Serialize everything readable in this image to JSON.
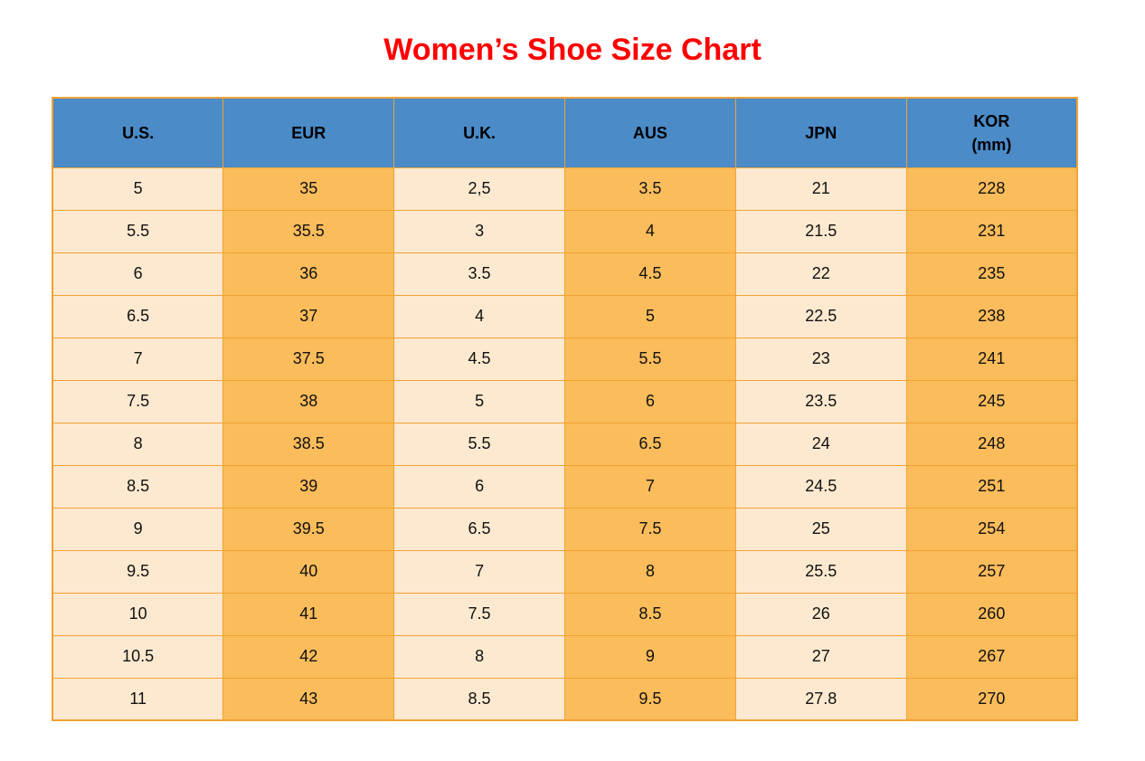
{
  "title": "Women’s Shoe Size Chart",
  "colors": {
    "title_red": "#fe0000",
    "header_blue": "#4a8bc8",
    "cell_cream": "#fce9cf",
    "cell_orange": "#fbbc5b",
    "grid_border": "#f1a233",
    "text": "#111111"
  },
  "table": {
    "columns": [
      {
        "key": "us",
        "label": "U.S.",
        "sublabel": ""
      },
      {
        "key": "eur",
        "label": "EUR",
        "sublabel": ""
      },
      {
        "key": "uk",
        "label": "U.K.",
        "sublabel": ""
      },
      {
        "key": "aus",
        "label": "AUS",
        "sublabel": ""
      },
      {
        "key": "jpn",
        "label": "JPN",
        "sublabel": ""
      },
      {
        "key": "kor",
        "label": "KOR",
        "sublabel": "(mm)"
      }
    ],
    "rows": [
      [
        "5",
        "35",
        "2,5",
        "3.5",
        "21",
        "228"
      ],
      [
        "5.5",
        "35.5",
        "3",
        "4",
        "21.5",
        "231"
      ],
      [
        "6",
        "36",
        "3.5",
        "4.5",
        "22",
        "235"
      ],
      [
        "6.5",
        "37",
        "4",
        "5",
        "22.5",
        "238"
      ],
      [
        "7",
        "37.5",
        "4.5",
        "5.5",
        "23",
        "241"
      ],
      [
        "7.5",
        "38",
        "5",
        "6",
        "23.5",
        "245"
      ],
      [
        "8",
        "38.5",
        "5.5",
        "6.5",
        "24",
        "248"
      ],
      [
        "8.5",
        "39",
        "6",
        "7",
        "24.5",
        "251"
      ],
      [
        "9",
        "39.5",
        "6.5",
        "7.5",
        "25",
        "254"
      ],
      [
        "9.5",
        "40",
        "7",
        "8",
        "25.5",
        "257"
      ],
      [
        "10",
        "41",
        "7.5",
        "8.5",
        "26",
        "260"
      ],
      [
        "10.5",
        "42",
        "8",
        "9",
        "27",
        "267"
      ],
      [
        "11",
        "43",
        "8.5",
        "9.5",
        "27.8",
        "270"
      ]
    ]
  },
  "chart_data": {
    "type": "table",
    "title": "Women’s Shoe Size Chart",
    "categories": [
      "U.S.",
      "EUR",
      "U.K.",
      "AUS",
      "JPN",
      "KOR (mm)"
    ],
    "series": [
      {
        "name": "U.S.",
        "values": [
          "5",
          "5.5",
          "6",
          "6.5",
          "7",
          "7.5",
          "8",
          "8.5",
          "9",
          "9.5",
          "10",
          "10.5",
          "11"
        ]
      },
      {
        "name": "EUR",
        "values": [
          "35",
          "35.5",
          "36",
          "37",
          "37.5",
          "38",
          "38.5",
          "39",
          "39.5",
          "40",
          "41",
          "42",
          "43"
        ]
      },
      {
        "name": "U.K.",
        "values": [
          "2,5",
          "3",
          "3.5",
          "4",
          "4.5",
          "5",
          "5.5",
          "6",
          "6.5",
          "7",
          "7.5",
          "8",
          "8.5"
        ]
      },
      {
        "name": "AUS",
        "values": [
          "3.5",
          "4",
          "4.5",
          "5",
          "5.5",
          "6",
          "6.5",
          "7",
          "7.5",
          "8",
          "8.5",
          "9",
          "9.5"
        ]
      },
      {
        "name": "JPN",
        "values": [
          "21",
          "21.5",
          "22",
          "22.5",
          "23",
          "23.5",
          "24",
          "24.5",
          "25",
          "25.5",
          "26",
          "27",
          "27.8"
        ]
      },
      {
        "name": "KOR (mm)",
        "values": [
          "228",
          "231",
          "235",
          "238",
          "241",
          "245",
          "248",
          "251",
          "254",
          "257",
          "260",
          "267",
          "270"
        ]
      }
    ]
  }
}
